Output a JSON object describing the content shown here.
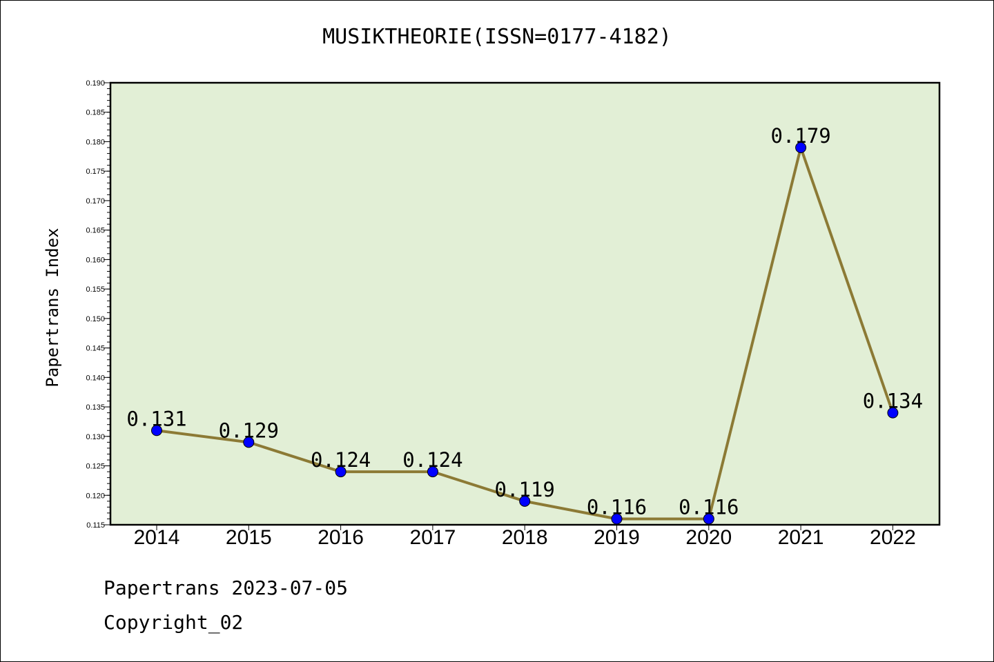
{
  "title": "MUSIKTHEORIE(ISSN=0177-4182)",
  "footer": {
    "line1": "Papertrans 2023-07-05",
    "line2": "Copyright_02"
  },
  "colors": {
    "plot_background": "#e2efd6",
    "line": "#8c7a35",
    "marker": "#0000ff",
    "axis": "#000000"
  },
  "chart_data": {
    "type": "line",
    "title": "MUSIKTHEORIE(ISSN=0177-4182)",
    "xlabel": "",
    "ylabel": "Papertrans Index",
    "categories": [
      "2014",
      "2015",
      "2016",
      "2017",
      "2018",
      "2019",
      "2020",
      "2021",
      "2022"
    ],
    "values": [
      0.131,
      0.129,
      0.124,
      0.124,
      0.119,
      0.116,
      0.116,
      0.179,
      0.134
    ],
    "data_labels": [
      "0.131",
      "0.129",
      "0.124",
      "0.124",
      "0.119",
      "0.116",
      "0.116",
      "0.179",
      "0.134"
    ],
    "ylim": [
      0.115,
      0.19
    ],
    "y_ticks": [
      "0.115",
      "0.120",
      "0.125",
      "0.130",
      "0.135",
      "0.140",
      "0.145",
      "0.150",
      "0.155",
      "0.160",
      "0.165",
      "0.170",
      "0.175",
      "0.180",
      "0.185",
      "0.190"
    ],
    "y_tick_values": [
      0.115,
      0.12,
      0.125,
      0.13,
      0.135,
      0.14,
      0.145,
      0.15,
      0.155,
      0.16,
      0.165,
      0.17,
      0.175,
      0.18,
      0.185,
      0.19
    ],
    "grid": false,
    "legend": "none"
  }
}
